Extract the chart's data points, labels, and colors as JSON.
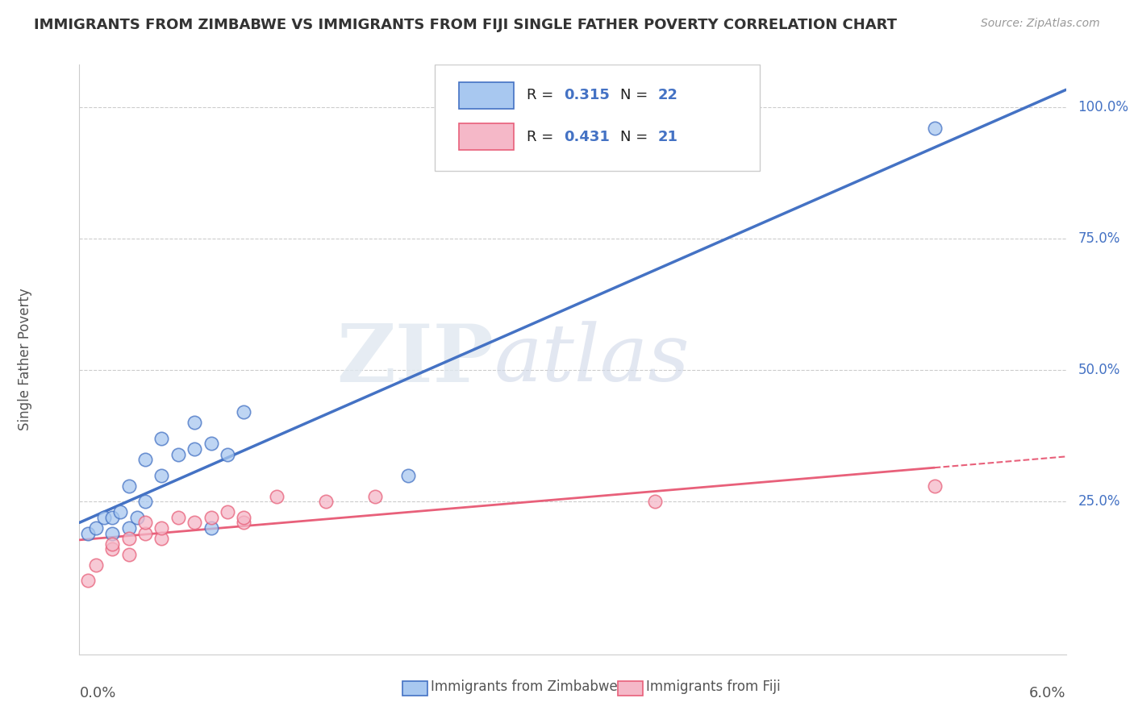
{
  "title": "IMMIGRANTS FROM ZIMBABWE VS IMMIGRANTS FROM FIJI SINGLE FATHER POVERTY CORRELATION CHART",
  "source": "Source: ZipAtlas.com",
  "ylabel": "Single Father Poverty",
  "right_yticks": [
    "100.0%",
    "75.0%",
    "50.0%",
    "25.0%"
  ],
  "right_ytick_vals": [
    1.0,
    0.75,
    0.5,
    0.25
  ],
  "R_zim": 0.315,
  "N_zim": 22,
  "R_fiji": 0.431,
  "N_fiji": 21,
  "color_zim": "#A8C8F0",
  "color_fiji": "#F5B8C8",
  "line_color_zim": "#4472C4",
  "line_color_fiji": "#E8607A",
  "watermark_zip": "ZIP",
  "watermark_atlas": "atlas",
  "xmin": 0.0,
  "xmax": 0.06,
  "ymin": -0.04,
  "ymax": 1.08,
  "zim_x": [
    0.0005,
    0.001,
    0.0015,
    0.002,
    0.002,
    0.0025,
    0.003,
    0.003,
    0.0035,
    0.004,
    0.004,
    0.005,
    0.005,
    0.006,
    0.007,
    0.007,
    0.008,
    0.008,
    0.009,
    0.01,
    0.02,
    0.052
  ],
  "zim_y": [
    0.19,
    0.2,
    0.22,
    0.22,
    0.19,
    0.23,
    0.2,
    0.28,
    0.22,
    0.25,
    0.33,
    0.3,
    0.37,
    0.34,
    0.35,
    0.4,
    0.36,
    0.2,
    0.34,
    0.42,
    0.3,
    0.96
  ],
  "fiji_x": [
    0.0005,
    0.001,
    0.002,
    0.002,
    0.003,
    0.003,
    0.004,
    0.004,
    0.005,
    0.005,
    0.006,
    0.007,
    0.008,
    0.009,
    0.01,
    0.01,
    0.012,
    0.015,
    0.018,
    0.035,
    0.052
  ],
  "fiji_y": [
    0.1,
    0.13,
    0.16,
    0.17,
    0.15,
    0.18,
    0.19,
    0.21,
    0.18,
    0.2,
    0.22,
    0.21,
    0.22,
    0.23,
    0.21,
    0.22,
    0.26,
    0.25,
    0.26,
    0.25,
    0.28
  ],
  "background_color": "#FFFFFF",
  "grid_color": "#CCCCCC"
}
